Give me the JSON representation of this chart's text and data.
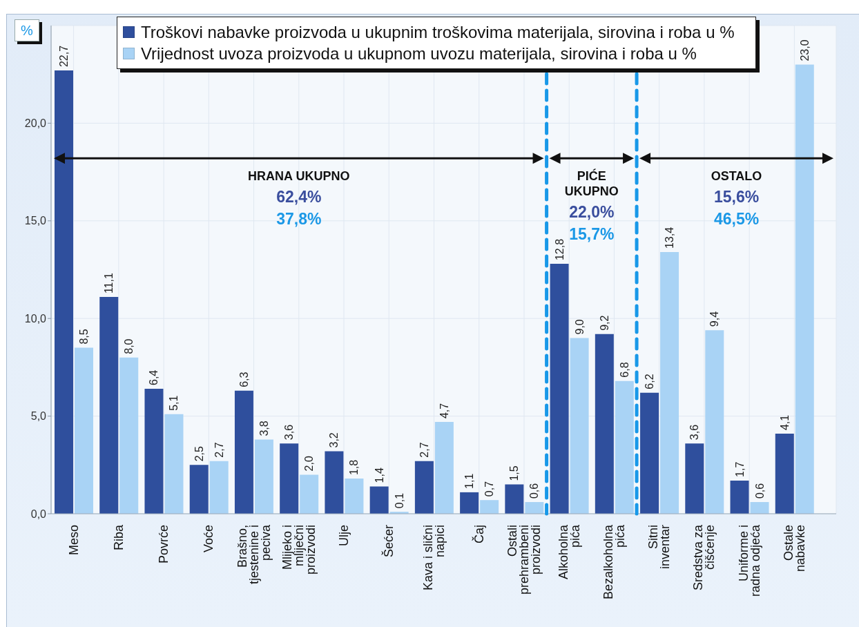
{
  "chart_data": {
    "type": "bar",
    "ylabel": "%",
    "categories": [
      "Meso",
      "Riba",
      "Povrće",
      "Voće",
      "Brašno, tjestenine i peciva",
      "Mlijeko i mliječni proizvodi",
      "Ulje",
      "Šećer",
      "Kava i slični napici",
      "Čaj",
      "Ostali prehrambeni proizvodi",
      "Alkoholna pića",
      "Bezalkoholna pića",
      "Sitni inventar",
      "Sredstva za čišćenje",
      "Uniforme i radna odjeća",
      "Ostale nabavke"
    ],
    "series": [
      {
        "name": "Troškovi nabavke proizvoda u ukupnim troškovima materijala, sirovina i roba u %",
        "color": "#2f4f9d",
        "values": [
          22.7,
          11.1,
          6.4,
          2.5,
          6.3,
          3.6,
          3.2,
          1.4,
          2.7,
          1.1,
          1.5,
          12.8,
          9.2,
          6.2,
          3.6,
          1.7,
          4.1
        ],
        "value_labels": [
          "22,7",
          "11,1",
          "6,4",
          "2,5",
          "6,3",
          "3,6",
          "3,2",
          "1,4",
          "2,7",
          "1,1",
          "1,5",
          "12,8",
          "9,2",
          "6,2",
          "3,6",
          "1,7",
          "4,1"
        ]
      },
      {
        "name": "Vrijednost uvoza proizvoda u ukupnom uvozu materijala, sirovina i roba u %",
        "color": "#a9d3f5",
        "values": [
          8.5,
          8.0,
          5.1,
          2.7,
          3.8,
          2.0,
          1.8,
          0.1,
          4.7,
          0.7,
          0.6,
          9.0,
          6.8,
          13.4,
          9.4,
          0.6,
          23.0
        ],
        "value_labels": [
          "8,5",
          "8,0",
          "5,1",
          "2,7",
          "3,8",
          "2,0",
          "1,8",
          "0,1",
          "4,7",
          "0,7",
          "0,6",
          "9,0",
          "6,8",
          "13,4",
          "9,4",
          "0,6",
          "23,0"
        ]
      }
    ],
    "ylim": [
      0,
      25
    ],
    "yticks": [
      {
        "value": 0,
        "label": "0,0"
      },
      {
        "value": 5,
        "label": "5,0"
      },
      {
        "value": 10,
        "label": "10,0"
      },
      {
        "value": 15,
        "label": "15,0"
      },
      {
        "value": 20,
        "label": "20,0"
      }
    ],
    "grid": true,
    "legend": "top",
    "annotations": [
      "HRANA UKUPNO",
      "62,4%",
      "37,8%",
      "PIĆE UKUPNO",
      "22,0%",
      "15,7%",
      "OSTALO",
      "15,6%",
      "46,5%"
    ]
  }
}
